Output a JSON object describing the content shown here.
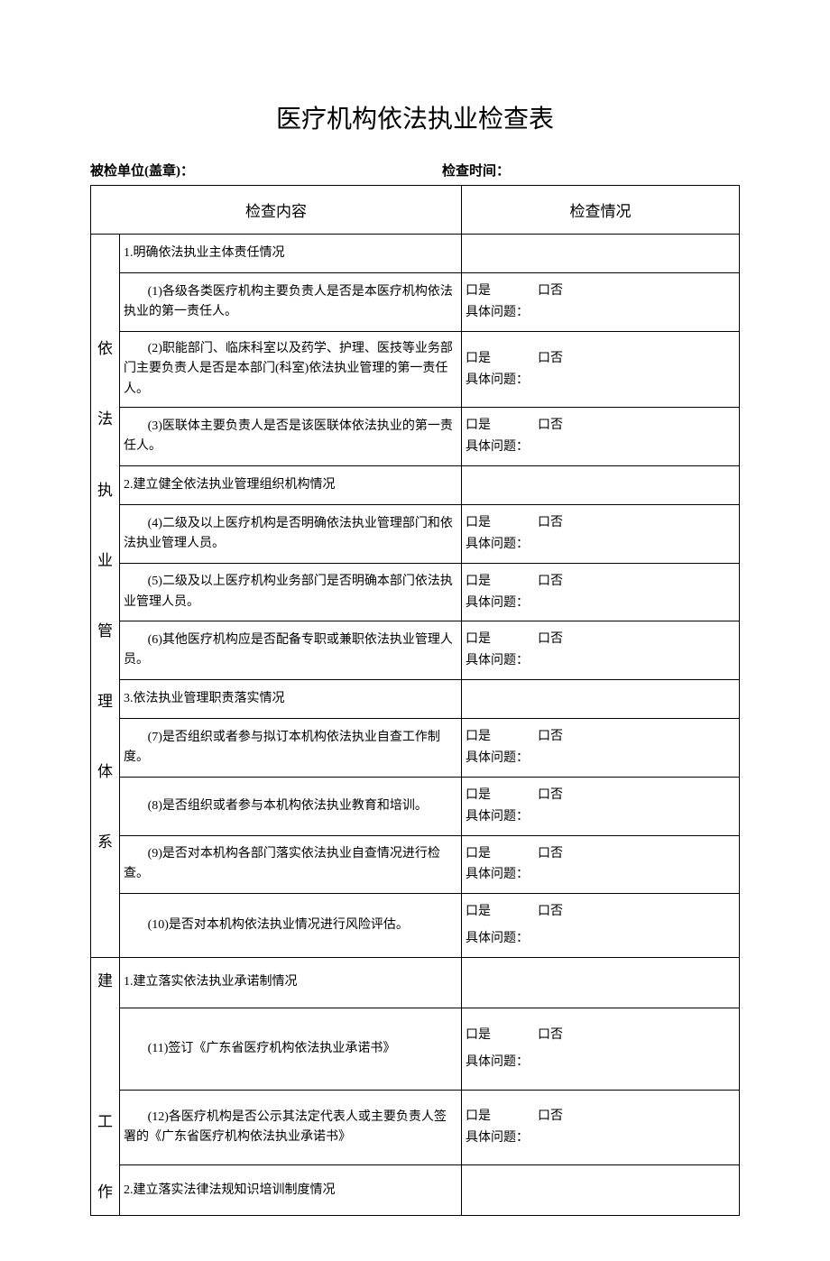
{
  "title": "医疗机构依法执业检查表",
  "header": {
    "left_label": "被检单位(盖章)：",
    "right_label": "检查时间："
  },
  "table_header": {
    "content": "检查内容",
    "status": "检查情况"
  },
  "options": {
    "yes": "口是",
    "no": "口否",
    "detail": "具体问题："
  },
  "sections": [
    {
      "category": "依\n\n法\n\n执\n\n业\n\n管\n\n理\n\n体\n\n系",
      "rows": [
        {
          "type": "header",
          "text": "1.明确依法执业主体责任情况"
        },
        {
          "type": "item",
          "text": "(1)各级各类医疗机构主要负责人是否是本医疗机构依法执业的第一责任人。",
          "indent": true
        },
        {
          "type": "item",
          "text": "(2)职能部门、临床科室以及药学、护理、医技等业务部门主要负责人是否是本部门(科室)依法执业管理的第一责任人。",
          "indent": true
        },
        {
          "type": "item",
          "text": "(3)医联体主要负责人是否是该医联体依法执业的第一责任人。",
          "indent": true
        },
        {
          "type": "header",
          "text": "2.建立健全依法执业管理组织机构情况"
        },
        {
          "type": "item",
          "text": "(4)二级及以上医疗机构是否明确依法执业管理部门和依法执业管理人员。",
          "indent": true
        },
        {
          "type": "item",
          "text": "(5)二级及以上医疗机构业务部门是否明确本部门依法执业管理人员。",
          "indent": true
        },
        {
          "type": "item",
          "text": "(6)其他医疗机构应是否配备专职或兼职依法执业管理人员。",
          "indent": true
        },
        {
          "type": "header",
          "text": "3.依法执业管理职责落实情况"
        },
        {
          "type": "item",
          "text": "(7)是否组织或者参与拟订本机构依法执业自查工作制度。",
          "indent": true
        },
        {
          "type": "item",
          "text": "(8)是否组织或者参与本机构依法执业教育和培训。",
          "indent": true
        },
        {
          "type": "item",
          "text": "(9)是否对本机构各部门落实依法执业自查情况进行检查。",
          "indent": true
        },
        {
          "type": "item",
          "text": "(10)是否对本机构依法执业情况进行风险评估。",
          "indent": true,
          "spaced": true
        }
      ]
    },
    {
      "category": "建\n\n\n\n工\n\n作",
      "rows": [
        {
          "type": "header",
          "text": "1.建立落实依法执业承诺制情况"
        },
        {
          "type": "item",
          "text": "(11)签订《广东省医疗机构依法执业承诺书》",
          "indent": true,
          "spaced": true
        },
        {
          "type": "item",
          "text": "(12)各医疗机构是否公示其法定代表人或主要负责人签署的《广东省医疗机构依法执业承诺书》",
          "indent": true
        },
        {
          "type": "header",
          "text": "2.建立落实法律法规知识培训制度情况"
        }
      ]
    }
  ]
}
